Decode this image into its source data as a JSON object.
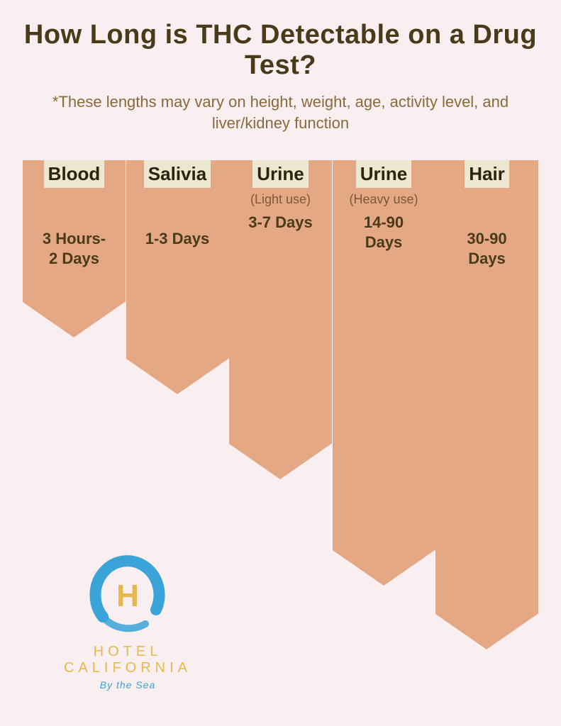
{
  "title": "How Long is THC Detectable on a Drug Test?",
  "subtitle": "*These lengths may vary on height, weight, age, activity level, and liver/kidney function",
  "colors": {
    "background": "#f9eff0",
    "arrow_fill": "#e4a884",
    "label_bg": "#ece7d0",
    "text_dark": "#4a3a1a",
    "text_medium": "#8a6a3a",
    "logo_blue": "#3aa3d8",
    "logo_gold": "#e8b84a"
  },
  "chart": {
    "type": "infographic",
    "arrow_width": 145,
    "tip_height": 50,
    "columns": [
      {
        "label": "Blood",
        "sublabel": "",
        "value": "3 Hours-\n2 Days",
        "body_height": 200
      },
      {
        "label": "Salivia",
        "sublabel": "",
        "value": "1-3 Days",
        "body_height": 280
      },
      {
        "label": "Urine",
        "sublabel": "(Light use)",
        "value": "3-7 Days",
        "body_height": 400
      },
      {
        "label": "Urine",
        "sublabel": "(Heavy use)",
        "value": "14-90\nDays",
        "body_height": 550
      },
      {
        "label": "Hair",
        "sublabel": "",
        "value": "30-90\nDays",
        "body_height": 640
      }
    ]
  },
  "logo": {
    "name": "HOTEL CALIFORNIA",
    "tagline": "By the Sea",
    "letter": "H"
  }
}
